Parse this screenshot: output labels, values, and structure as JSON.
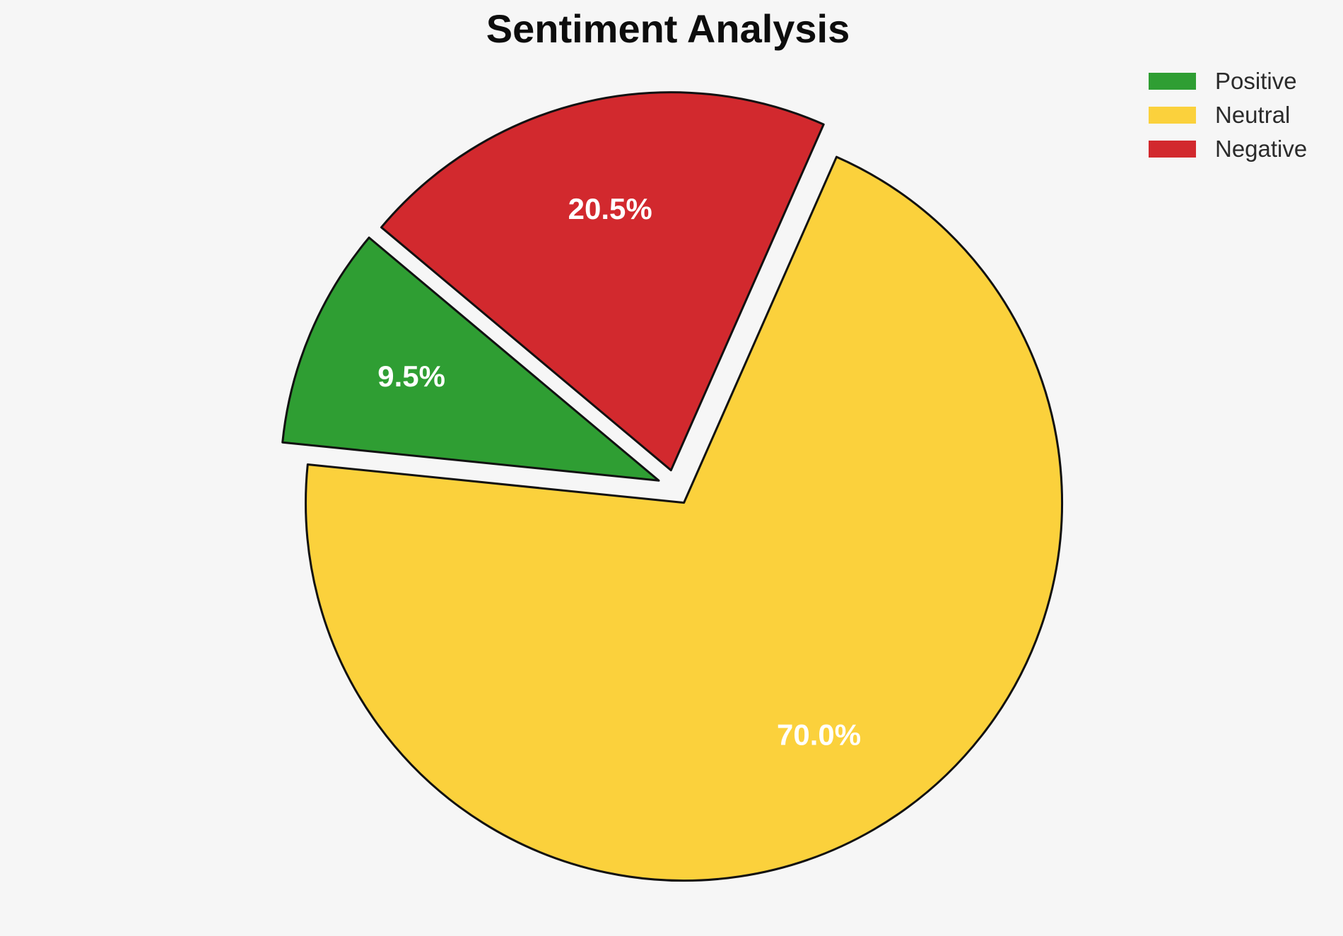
{
  "page": {
    "background_color": "#f6f6f6"
  },
  "chart_data": {
    "type": "pie",
    "title": "Sentiment Analysis",
    "labels": [
      "Positive",
      "Neutral",
      "Negative"
    ],
    "values_percent": [
      9.5,
      70.0,
      20.5
    ],
    "slice_labels": [
      "9.5%",
      "70.0%",
      "20.5%"
    ],
    "colors": [
      "#2f9e33",
      "#fbd13c",
      "#d2292e"
    ],
    "start_angle_deg": 140,
    "direction": "counterclockwise",
    "exploded": true,
    "slice_label_color": "#ffffff",
    "edge_color": "#111111",
    "title_color": "#0d0d0d",
    "legend": {
      "position": "upper-right",
      "entries": [
        "Positive",
        "Neutral",
        "Negative"
      ],
      "text_color": "#2b2b2b"
    }
  }
}
